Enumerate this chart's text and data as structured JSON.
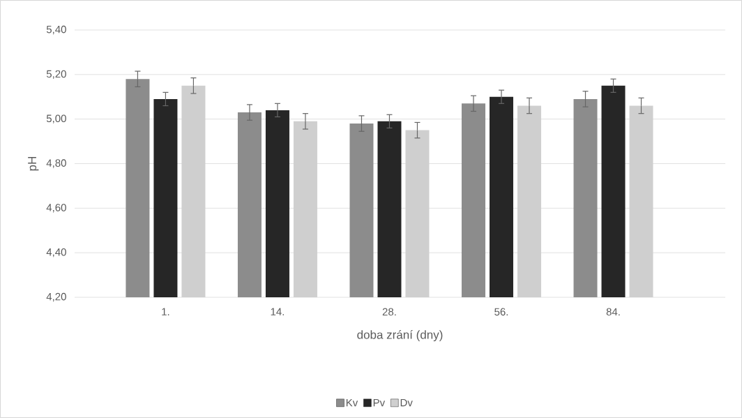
{
  "chart_data": {
    "type": "bar",
    "xlabel": "doba zrání (dny)",
    "ylabel": "pH",
    "categories": [
      "1.",
      "14.",
      "28.",
      "56.",
      "84."
    ],
    "series": [
      {
        "name": "Kv",
        "color": "#8c8c8c",
        "values": [
          5.18,
          5.03,
          4.98,
          5.07,
          5.09
        ],
        "errors": [
          0.035,
          0.035,
          0.035,
          0.035,
          0.035
        ]
      },
      {
        "name": "Pv",
        "color": "#262626",
        "values": [
          5.09,
          5.04,
          4.99,
          5.1,
          5.15
        ],
        "errors": [
          0.03,
          0.03,
          0.03,
          0.03,
          0.03
        ]
      },
      {
        "name": "Dv",
        "color": "#cfcfcf",
        "values": [
          5.15,
          4.99,
          4.95,
          5.06,
          5.06
        ],
        "errors": [
          0.035,
          0.035,
          0.035,
          0.035,
          0.035
        ]
      }
    ],
    "ylim": [
      4.2,
      5.4
    ],
    "yticks": [
      {
        "value": 4.2,
        "label": "4,20"
      },
      {
        "value": 4.4,
        "label": "4,40"
      },
      {
        "value": 4.6,
        "label": "4,60"
      },
      {
        "value": 4.8,
        "label": "4,80"
      },
      {
        "value": 5.0,
        "label": "5,00"
      },
      {
        "value": 5.2,
        "label": "5,20"
      },
      {
        "value": 5.4,
        "label": "5,40"
      }
    ],
    "grid": "y",
    "legend": "bottom"
  }
}
